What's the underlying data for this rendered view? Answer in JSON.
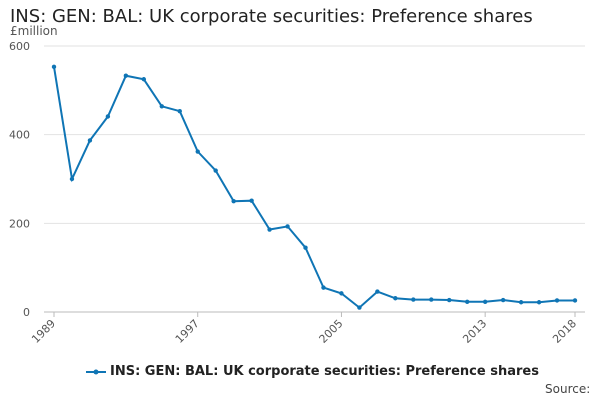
{
  "chart_data": {
    "type": "line",
    "title": "INS: GEN: BAL: UK corporate securities: Preference shares",
    "ylabel": "£million",
    "xlabel": "",
    "source_label": "Source:",
    "x": [
      1989,
      1990,
      1991,
      1992,
      1993,
      1994,
      1995,
      1996,
      1997,
      1998,
      1999,
      2000,
      2001,
      2002,
      2003,
      2004,
      2005,
      2006,
      2007,
      2008,
      2009,
      2010,
      2011,
      2012,
      2013,
      2014,
      2015,
      2016,
      2017,
      2018
    ],
    "x_ticks": [
      1989,
      1997,
      2005,
      2013,
      2018
    ],
    "xlim": [
      1989,
      2018
    ],
    "y_ticks": [
      0,
      200,
      400,
      600
    ],
    "ylim": [
      0,
      600
    ],
    "grid": true,
    "legend_position": "bottom",
    "color": "#0f75b5",
    "series": [
      {
        "name": "INS: GEN: BAL: UK corporate securities: Preference shares",
        "values": [
          553,
          300,
          387,
          441,
          533,
          525,
          464,
          453,
          362,
          319,
          250,
          251,
          186,
          193,
          145,
          55,
          42,
          10,
          46,
          31,
          28,
          28,
          27,
          23,
          23,
          27,
          22,
          22,
          26,
          26
        ]
      }
    ]
  }
}
